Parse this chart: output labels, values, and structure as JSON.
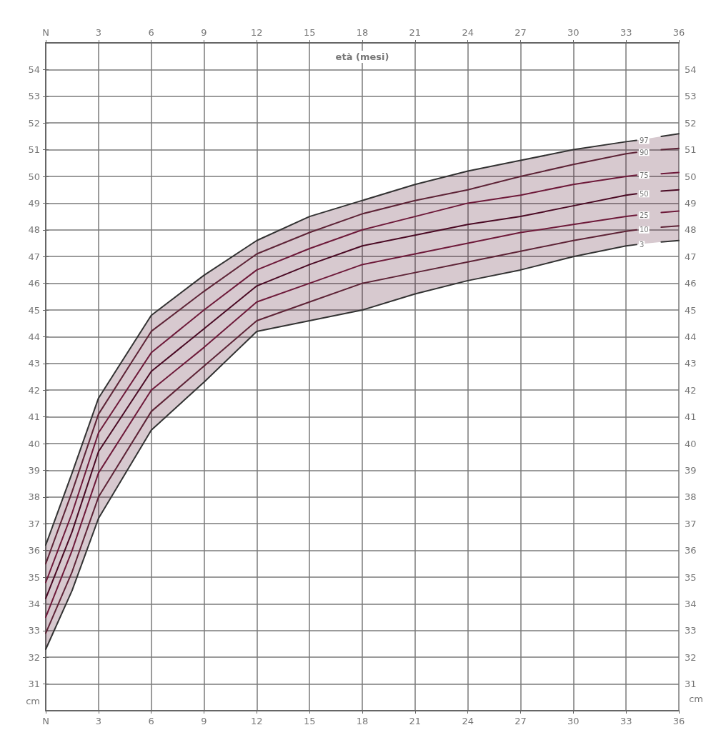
{
  "chart_data": {
    "type": "line",
    "xlabel": "età (mesi)",
    "ylabel": "cm",
    "y2label": "cm",
    "x": [
      0,
      1.5,
      3,
      6,
      9,
      12,
      15,
      18,
      21,
      24,
      27,
      30,
      33,
      33.6,
      34.6,
      35,
      36
    ],
    "series": [
      {
        "name": "97",
        "color": "#333333",
        "values": [
          36.2,
          38.9,
          41.7,
          44.8,
          46.3,
          47.6,
          48.5,
          49.1,
          49.7,
          50.2,
          50.6,
          51.0,
          51.3,
          51.35,
          null,
          51.5,
          51.6
        ]
      },
      {
        "name": "90",
        "color": "#5e2437",
        "values": [
          35.5,
          38.2,
          41.1,
          44.2,
          45.7,
          47.1,
          47.9,
          48.6,
          49.1,
          49.5,
          50.0,
          50.45,
          50.85,
          50.9,
          null,
          51.0,
          51.05
        ]
      },
      {
        "name": "75",
        "color": "#6e1a3a",
        "values": [
          34.8,
          37.4,
          40.4,
          43.4,
          45.0,
          46.5,
          47.3,
          48.0,
          48.5,
          49.0,
          49.3,
          49.7,
          50.0,
          50.05,
          null,
          50.1,
          50.15
        ]
      },
      {
        "name": "50",
        "color": "#4a0a24",
        "values": [
          34.2,
          36.7,
          39.7,
          42.7,
          44.3,
          45.9,
          46.7,
          47.4,
          47.8,
          48.2,
          48.5,
          48.9,
          49.3,
          49.35,
          null,
          49.45,
          49.5
        ],
        "lower": [
          32.3,
          34.5,
          37.2,
          40.5,
          42.3,
          44.2,
          44.6,
          45.0,
          45.6,
          46.1,
          46.5,
          47.0,
          47.4,
          47.45,
          null,
          47.55,
          47.6
        ],
        "upper": [
          36.2,
          38.9,
          41.7,
          44.8,
          46.3,
          47.6,
          48.5,
          49.1,
          49.7,
          50.2,
          50.6,
          51.0,
          51.3,
          51.35,
          null,
          51.5,
          51.6
        ]
      },
      {
        "name": "25",
        "color": "#6e1a3a",
        "values": [
          33.5,
          36.0,
          38.9,
          42.0,
          43.6,
          45.3,
          46.0,
          46.7,
          47.1,
          47.5,
          47.9,
          48.2,
          48.5,
          48.55,
          null,
          48.65,
          48.7
        ]
      },
      {
        "name": "10",
        "color": "#5e2437",
        "values": [
          32.9,
          35.2,
          38.0,
          41.2,
          42.9,
          44.6,
          45.3,
          46.0,
          46.4,
          46.8,
          47.2,
          47.6,
          47.95,
          48.0,
          null,
          48.1,
          48.15
        ]
      },
      {
        "name": "3",
        "color": "#333333",
        "values": [
          32.3,
          34.5,
          37.2,
          40.5,
          42.3,
          44.2,
          44.6,
          45.0,
          45.6,
          46.1,
          46.5,
          47.0,
          47.4,
          47.45,
          null,
          47.55,
          47.6
        ]
      }
    ],
    "xlim": [
      0,
      36
    ],
    "xticks": [
      {
        "value": 0,
        "label": "N"
      },
      3,
      6,
      9,
      12,
      15,
      18,
      21,
      24,
      27,
      30,
      33,
      36
    ],
    "x2lim": [
      0,
      36
    ],
    "x2ticks": [
      {
        "value": 0,
        "label": "N"
      },
      3,
      6,
      9,
      12,
      15,
      18,
      21,
      24,
      27,
      30,
      33,
      36
    ],
    "ylim": [
      30,
      55
    ],
    "yticks": [
      31,
      32,
      33,
      34,
      35,
      36,
      37,
      38,
      39,
      40,
      41,
      42,
      43,
      44,
      45,
      46,
      47,
      48,
      49,
      50,
      51,
      52,
      53,
      54
    ],
    "y2lim": [
      30,
      55
    ],
    "y2ticks": [
      31,
      32,
      33,
      34,
      35,
      36,
      37,
      38,
      39,
      40,
      41,
      42,
      43,
      44,
      45,
      46,
      47,
      48,
      49,
      50,
      51,
      52,
      53,
      54
    ],
    "grid": true,
    "marker": "none",
    "line_style": "solid"
  }
}
